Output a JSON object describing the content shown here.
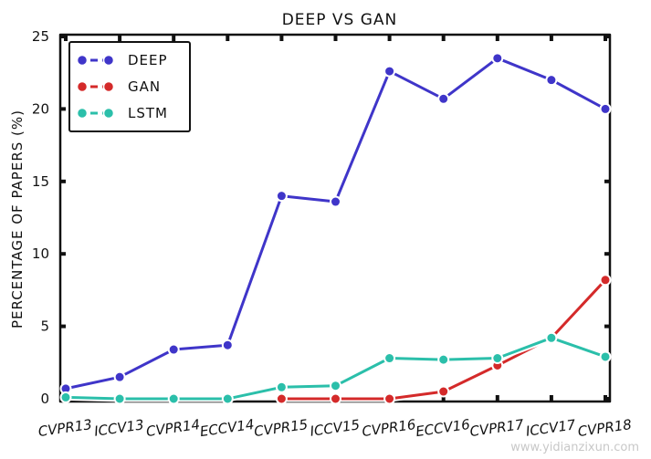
{
  "chart_data": {
    "type": "line",
    "title": "DEEP VS GAN",
    "xlabel": "",
    "ylabel": "PERCENTAGE OF PAPERS (%)",
    "ylim": [
      0,
      25
    ],
    "yticks": [
      "0",
      "5",
      "10",
      "15",
      "20",
      "25"
    ],
    "categories": [
      "CVPR13",
      "ICCV13",
      "CVPR14",
      "ECCV14",
      "CVPR15",
      "ICCV15",
      "CVPR16",
      "ECCV16",
      "CVPR17",
      "ICCV17",
      "CVPR18"
    ],
    "legend_position": "top-left",
    "grid": false,
    "series": [
      {
        "name": "DEEP",
        "color": "#3f35c9",
        "values": [
          0.7,
          1.5,
          3.4,
          3.7,
          14.0,
          13.6,
          22.6,
          20.7,
          23.5,
          22.0,
          20.0
        ]
      },
      {
        "name": "GAN",
        "color": "#d42a2a",
        "values": [
          null,
          null,
          null,
          null,
          0.0,
          0.0,
          0.0,
          0.5,
          2.3,
          4.2,
          8.2
        ]
      },
      {
        "name": "LSTM",
        "color": "#2bbfaa",
        "values": [
          0.1,
          0.0,
          0.0,
          0.0,
          0.8,
          0.9,
          2.8,
          2.7,
          2.8,
          4.2,
          2.9
        ]
      }
    ]
  },
  "watermark": "www.yidianzixun.com"
}
